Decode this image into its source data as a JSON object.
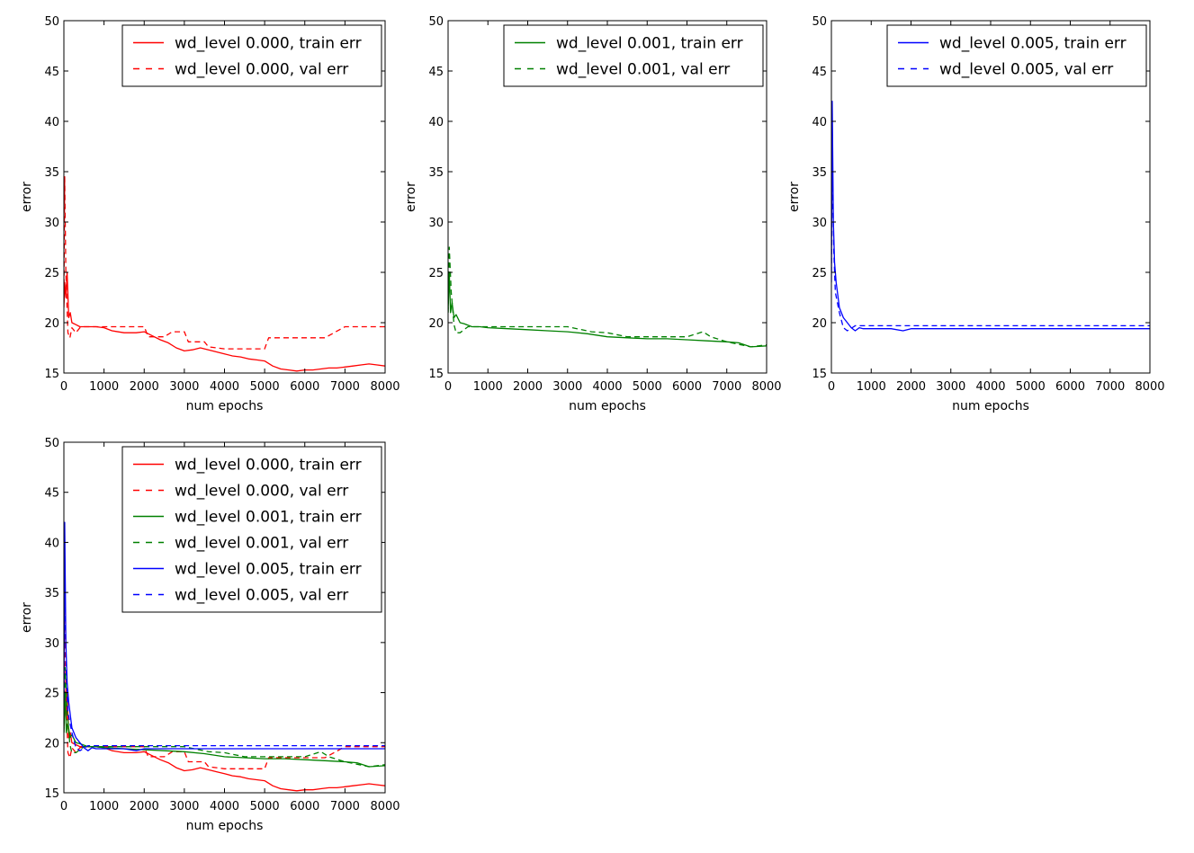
{
  "colors": {
    "red": "#ff0000",
    "green": "#008000",
    "blue": "#0000ff"
  },
  "chart_data": [
    {
      "type": "line",
      "xlabel": "num epochs",
      "ylabel": "error",
      "xlim": [
        0,
        8000
      ],
      "ylim": [
        15,
        50
      ],
      "xticks": [
        "0",
        "1000",
        "2000",
        "3000",
        "4000",
        "5000",
        "6000",
        "7000",
        "8000"
      ],
      "yticks": [
        "15",
        "20",
        "25",
        "30",
        "35",
        "40",
        "45",
        "50"
      ],
      "grid": false,
      "legend_position": "top-right",
      "series": [
        {
          "name": "wd_level 0.000, train err",
          "color": "#ff0000",
          "style": "solid",
          "x": [
            0,
            20,
            50,
            80,
            120,
            160,
            200,
            300,
            400,
            600,
            800,
            1000,
            1200,
            1500,
            1800,
            2000,
            2200,
            2400,
            2600,
            2800,
            3000,
            3200,
            3400,
            3600,
            3800,
            4000,
            4200,
            4400,
            4600,
            4800,
            5000,
            5200,
            5400,
            5600,
            5800,
            6000,
            6200,
            6400,
            6600,
            6800,
            7000,
            7200,
            7400,
            7600,
            7800,
            8000
          ],
          "y": [
            21.5,
            24,
            22.5,
            25,
            20.5,
            21,
            20,
            19.8,
            19.6,
            19.6,
            19.6,
            19.5,
            19.2,
            19.0,
            19.0,
            19.1,
            18.7,
            18.3,
            18.0,
            17.5,
            17.2,
            17.3,
            17.5,
            17.3,
            17.1,
            16.9,
            16.7,
            16.6,
            16.4,
            16.3,
            16.2,
            15.7,
            15.4,
            15.3,
            15.2,
            15.3,
            15.3,
            15.4,
            15.5,
            15.5,
            15.6,
            15.7,
            15.8,
            15.9,
            15.8,
            15.7
          ]
        },
        {
          "name": "wd_level 0.000, val err",
          "color": "#ff0000",
          "style": "dashed",
          "x": [
            0,
            20,
            50,
            100,
            150,
            200,
            300,
            400,
            500,
            1000,
            1500,
            2000,
            2100,
            2500,
            2700,
            3000,
            3100,
            3500,
            3600,
            4000,
            4500,
            5000,
            5100,
            5500,
            6000,
            6500,
            7000,
            7500,
            8000
          ],
          "y": [
            22,
            34.5,
            25,
            19,
            18.5,
            19.5,
            19,
            19.5,
            19.6,
            19.6,
            19.6,
            19.6,
            18.6,
            18.6,
            19.1,
            19.1,
            18.1,
            18.1,
            17.6,
            17.4,
            17.4,
            17.4,
            18.5,
            18.5,
            18.5,
            18.5,
            19.6,
            19.6,
            19.6
          ]
        }
      ]
    },
    {
      "type": "line",
      "xlabel": "num epochs",
      "ylabel": "error",
      "xlim": [
        0,
        8000
      ],
      "ylim": [
        15,
        50
      ],
      "xticks": [
        "0",
        "1000",
        "2000",
        "3000",
        "4000",
        "5000",
        "6000",
        "7000",
        "8000"
      ],
      "yticks": [
        "15",
        "20",
        "25",
        "30",
        "35",
        "40",
        "45",
        "50"
      ],
      "grid": false,
      "legend_position": "top-right",
      "series": [
        {
          "name": "wd_level 0.001, train err",
          "color": "#008000",
          "style": "solid",
          "x": [
            0,
            30,
            60,
            100,
            150,
            200,
            300,
            400,
            600,
            800,
            1000,
            1500,
            2000,
            2500,
            3000,
            3500,
            4000,
            4500,
            5000,
            5500,
            6000,
            6500,
            7000,
            7300,
            7600,
            8000
          ],
          "y": [
            21,
            25,
            21,
            22,
            20.5,
            20.8,
            20,
            19.9,
            19.6,
            19.6,
            19.5,
            19.4,
            19.3,
            19.2,
            19.1,
            18.9,
            18.6,
            18.5,
            18.4,
            18.4,
            18.3,
            18.2,
            18.1,
            18.0,
            17.6,
            17.7
          ]
        },
        {
          "name": "wd_level 0.001, val err",
          "color": "#008000",
          "style": "dashed",
          "x": [
            0,
            30,
            80,
            150,
            200,
            300,
            500,
            1000,
            2000,
            2200,
            3000,
            3600,
            4000,
            4500,
            5000,
            5500,
            6000,
            6400,
            6600,
            7000,
            7600,
            8000
          ],
          "y": [
            21,
            27.5,
            23,
            19.8,
            19,
            19,
            19.6,
            19.6,
            19.6,
            19.6,
            19.6,
            19.1,
            19.0,
            18.6,
            18.6,
            18.6,
            18.6,
            19.1,
            18.6,
            18.1,
            17.6,
            17.8
          ]
        }
      ]
    },
    {
      "type": "line",
      "xlabel": "num epochs",
      "ylabel": "error",
      "xlim": [
        0,
        8000
      ],
      "ylim": [
        15,
        50
      ],
      "xticks": [
        "0",
        "1000",
        "2000",
        "3000",
        "4000",
        "5000",
        "6000",
        "7000",
        "8000"
      ],
      "yticks": [
        "15",
        "20",
        "25",
        "30",
        "35",
        "40",
        "45",
        "50"
      ],
      "grid": false,
      "legend_position": "top-right",
      "series": [
        {
          "name": "wd_level 0.005, train err",
          "color": "#0000ff",
          "style": "solid",
          "x": [
            0,
            20,
            50,
            80,
            120,
            200,
            300,
            400,
            500,
            600,
            700,
            800,
            900,
            1000,
            1500,
            1800,
            2000,
            4000,
            6000,
            8000
          ],
          "y": [
            24,
            42,
            30,
            26,
            24,
            21.5,
            20.5,
            20.0,
            19.5,
            19.2,
            19.5,
            19.4,
            19.4,
            19.4,
            19.4,
            19.2,
            19.4,
            19.4,
            19.4,
            19.4
          ]
        },
        {
          "name": "wd_level 0.005, val err",
          "color": "#0000ff",
          "style": "dashed",
          "x": [
            0,
            20,
            60,
            100,
            200,
            300,
            400,
            600,
            8000
          ],
          "y": [
            25,
            36,
            27,
            23,
            21,
            19.5,
            19.2,
            19.7,
            19.7
          ]
        }
      ]
    },
    {
      "type": "line",
      "xlabel": "num epochs",
      "ylabel": "error",
      "xlim": [
        0,
        8000
      ],
      "ylim": [
        15,
        50
      ],
      "xticks": [
        "0",
        "1000",
        "2000",
        "3000",
        "4000",
        "5000",
        "6000",
        "7000",
        "8000"
      ],
      "yticks": [
        "15",
        "20",
        "25",
        "30",
        "35",
        "40",
        "45",
        "50"
      ],
      "grid": false,
      "legend_position": "top-right",
      "series": [
        {
          "name": "wd_level 0.000, train err",
          "color": "#ff0000",
          "style": "solid",
          "x": [
            0,
            20,
            50,
            80,
            120,
            160,
            200,
            300,
            400,
            600,
            800,
            1000,
            1200,
            1500,
            1800,
            2000,
            2200,
            2400,
            2600,
            2800,
            3000,
            3200,
            3400,
            3600,
            3800,
            4000,
            4200,
            4400,
            4600,
            4800,
            5000,
            5200,
            5400,
            5600,
            5800,
            6000,
            6200,
            6400,
            6600,
            6800,
            7000,
            7200,
            7400,
            7600,
            7800,
            8000
          ],
          "y": [
            21.5,
            24,
            22.5,
            25,
            20.5,
            21,
            20,
            19.8,
            19.6,
            19.6,
            19.6,
            19.5,
            19.2,
            19.0,
            19.0,
            19.1,
            18.7,
            18.3,
            18.0,
            17.5,
            17.2,
            17.3,
            17.5,
            17.3,
            17.1,
            16.9,
            16.7,
            16.6,
            16.4,
            16.3,
            16.2,
            15.7,
            15.4,
            15.3,
            15.2,
            15.3,
            15.3,
            15.4,
            15.5,
            15.5,
            15.6,
            15.7,
            15.8,
            15.9,
            15.8,
            15.7
          ]
        },
        {
          "name": "wd_level 0.000, val err",
          "color": "#ff0000",
          "style": "dashed",
          "x": [
            0,
            20,
            50,
            100,
            150,
            200,
            300,
            400,
            500,
            1000,
            1500,
            2000,
            2100,
            2500,
            2700,
            3000,
            3100,
            3500,
            3600,
            4000,
            4500,
            5000,
            5100,
            5500,
            6000,
            6500,
            7000,
            7500,
            8000
          ],
          "y": [
            22,
            34.5,
            25,
            19,
            18.5,
            19.5,
            19,
            19.5,
            19.6,
            19.6,
            19.6,
            19.6,
            18.6,
            18.6,
            19.1,
            19.1,
            18.1,
            18.1,
            17.6,
            17.4,
            17.4,
            17.4,
            18.5,
            18.5,
            18.5,
            18.5,
            19.6,
            19.6,
            19.6
          ]
        },
        {
          "name": "wd_level 0.001, train err",
          "color": "#008000",
          "style": "solid",
          "x": [
            0,
            30,
            60,
            100,
            150,
            200,
            300,
            400,
            600,
            800,
            1000,
            1500,
            2000,
            2500,
            3000,
            3500,
            4000,
            4500,
            5000,
            5500,
            6000,
            6500,
            7000,
            7300,
            7600,
            8000
          ],
          "y": [
            21,
            25,
            21,
            22,
            20.5,
            20.8,
            20,
            19.9,
            19.6,
            19.6,
            19.5,
            19.4,
            19.3,
            19.2,
            19.1,
            18.9,
            18.6,
            18.5,
            18.4,
            18.4,
            18.3,
            18.2,
            18.1,
            18.0,
            17.6,
            17.7
          ]
        },
        {
          "name": "wd_level 0.001, val err",
          "color": "#008000",
          "style": "dashed",
          "x": [
            0,
            30,
            80,
            150,
            200,
            300,
            500,
            1000,
            2000,
            2200,
            3000,
            3600,
            4000,
            4500,
            5000,
            5500,
            6000,
            6400,
            6600,
            7000,
            7600,
            8000
          ],
          "y": [
            21,
            27.5,
            23,
            19.8,
            19,
            19,
            19.6,
            19.6,
            19.6,
            19.6,
            19.6,
            19.1,
            19.0,
            18.6,
            18.6,
            18.6,
            18.6,
            19.1,
            18.6,
            18.1,
            17.6,
            17.8
          ]
        },
        {
          "name": "wd_level 0.005, train err",
          "color": "#0000ff",
          "style": "solid",
          "x": [
            0,
            20,
            50,
            80,
            120,
            200,
            300,
            400,
            500,
            600,
            700,
            800,
            900,
            1000,
            1500,
            1800,
            2000,
            4000,
            6000,
            8000
          ],
          "y": [
            24,
            42,
            30,
            26,
            24,
            21.5,
            20.5,
            20.0,
            19.5,
            19.2,
            19.5,
            19.4,
            19.4,
            19.4,
            19.4,
            19.2,
            19.4,
            19.4,
            19.4,
            19.4
          ]
        },
        {
          "name": "wd_level 0.005, val err",
          "color": "#0000ff",
          "style": "dashed",
          "x": [
            0,
            20,
            60,
            100,
            200,
            300,
            400,
            600,
            8000
          ],
          "y": [
            25,
            36,
            27,
            23,
            21,
            19.5,
            19.2,
            19.7,
            19.7
          ]
        }
      ]
    }
  ]
}
